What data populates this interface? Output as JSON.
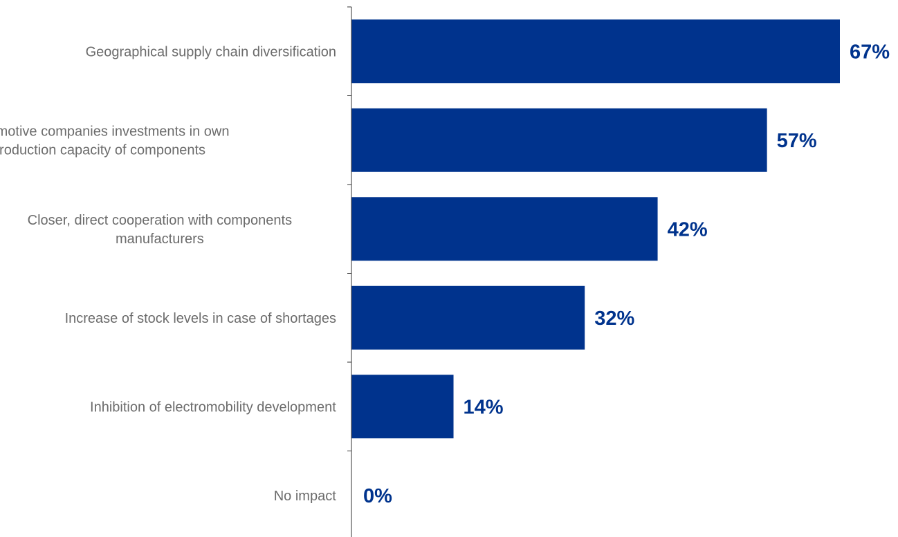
{
  "chart_data": {
    "type": "bar",
    "orientation": "horizontal",
    "categories": [
      [
        "Geographical supply chain diversification"
      ],
      [
        "Automotive companies investments in own",
        "production capacity of components"
      ],
      [
        "Closer, direct cooperation with components",
        "manufacturers"
      ],
      [
        "Increase of stock levels in case of shortages"
      ],
      [
        "Inhibition of electromobility development"
      ],
      [
        "No impact"
      ]
    ],
    "values": [
      67,
      57,
      42,
      32,
      14,
      0
    ],
    "value_labels": [
      "67%",
      "57%",
      "42%",
      "32%",
      "14%",
      "0%"
    ],
    "xlim": [
      0,
      100
    ],
    "grid": false,
    "legend": "none",
    "colors": {
      "bar": "#00338d",
      "value_label": "#00338d",
      "category_label": "#6b6b6b",
      "axis": "#333333"
    }
  }
}
